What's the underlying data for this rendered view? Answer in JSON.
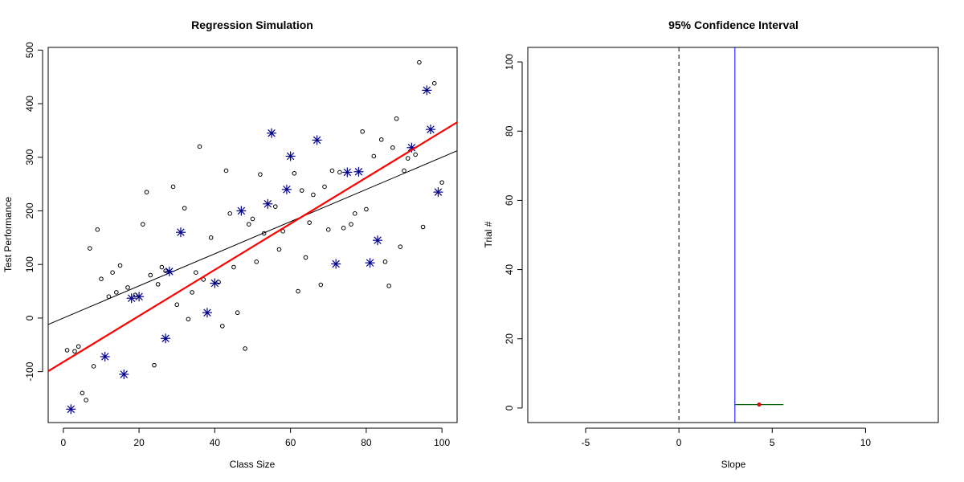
{
  "chart_data": [
    {
      "type": "scatter",
      "title": "Regression Simulation",
      "xlabel": "Class Size",
      "ylabel": "Test Performance",
      "xlim": [
        -4,
        104
      ],
      "ylim": [
        -195,
        505
      ],
      "xticks": [
        0,
        20,
        40,
        60,
        80,
        100
      ],
      "yticks": [
        -100,
        0,
        100,
        200,
        300,
        400,
        500
      ],
      "grid": false,
      "population_points": [
        [
          1,
          -60
        ],
        [
          3,
          -62
        ],
        [
          4,
          -53
        ],
        [
          5,
          -140
        ],
        [
          6,
          -153
        ],
        [
          7,
          130
        ],
        [
          8,
          -90
        ],
        [
          9,
          165
        ],
        [
          10,
          73
        ],
        [
          12,
          40
        ],
        [
          13,
          85
        ],
        [
          14,
          48
        ],
        [
          15,
          98
        ],
        [
          17,
          57
        ],
        [
          19,
          43
        ],
        [
          21,
          175
        ],
        [
          22,
          235
        ],
        [
          23,
          80
        ],
        [
          24,
          -88
        ],
        [
          25,
          63
        ],
        [
          26,
          95
        ],
        [
          27,
          88
        ],
        [
          29,
          245
        ],
        [
          30,
          25
        ],
        [
          32,
          205
        ],
        [
          33,
          -2
        ],
        [
          34,
          48
        ],
        [
          35,
          85
        ],
        [
          36,
          320
        ],
        [
          37,
          72
        ],
        [
          39,
          150
        ],
        [
          41,
          67
        ],
        [
          42,
          -15
        ],
        [
          43,
          275
        ],
        [
          44,
          195
        ],
        [
          45,
          95
        ],
        [
          46,
          10
        ],
        [
          48,
          -57
        ],
        [
          49,
          175
        ],
        [
          50,
          185
        ],
        [
          51,
          105
        ],
        [
          52,
          268
        ],
        [
          53,
          158
        ],
        [
          56,
          208
        ],
        [
          57,
          128
        ],
        [
          58,
          162
        ],
        [
          61,
          270
        ],
        [
          62,
          50
        ],
        [
          63,
          238
        ],
        [
          64,
          113
        ],
        [
          65,
          178
        ],
        [
          66,
          230
        ],
        [
          68,
          62
        ],
        [
          69,
          245
        ],
        [
          70,
          165
        ],
        [
          71,
          275
        ],
        [
          73,
          272
        ],
        [
          74,
          168
        ],
        [
          76,
          175
        ],
        [
          77,
          195
        ],
        [
          79,
          348
        ],
        [
          80,
          203
        ],
        [
          82,
          302
        ],
        [
          84,
          333
        ],
        [
          85,
          105
        ],
        [
          86,
          60
        ],
        [
          87,
          318
        ],
        [
          88,
          372
        ],
        [
          89,
          133
        ],
        [
          90,
          275
        ],
        [
          91,
          298
        ],
        [
          93,
          305
        ],
        [
          94,
          477
        ],
        [
          95,
          170
        ],
        [
          98,
          438
        ],
        [
          100,
          253
        ]
      ],
      "sample_points": [
        [
          2,
          -170
        ],
        [
          11,
          -72
        ],
        [
          16,
          -105
        ],
        [
          18,
          37
        ],
        [
          20,
          40
        ],
        [
          27,
          -38
        ],
        [
          28,
          87
        ],
        [
          31,
          160
        ],
        [
          38,
          10
        ],
        [
          40,
          65
        ],
        [
          47,
          200
        ],
        [
          54,
          213
        ],
        [
          55,
          345
        ],
        [
          59,
          240
        ],
        [
          60,
          302
        ],
        [
          67,
          332
        ],
        [
          72,
          101
        ],
        [
          75,
          272
        ],
        [
          78,
          273
        ],
        [
          81,
          103
        ],
        [
          83,
          145
        ],
        [
          92,
          318
        ],
        [
          96,
          425
        ],
        [
          97,
          352
        ],
        [
          99,
          235
        ]
      ],
      "population_line": {
        "intercept": 0,
        "slope": 3
      },
      "sample_line": {
        "intercept": -82,
        "slope": 4.3
      },
      "colors": {
        "sample": "#00008B",
        "sample_line": "#ff0000",
        "population_line": "#000000",
        "points": "#000000"
      }
    },
    {
      "type": "line",
      "title": "95% Confidence Interval",
      "xlabel": "Slope",
      "ylabel": "Trial #",
      "xlim": [
        -8.1,
        13.9
      ],
      "ylim": [
        -4.2,
        104.2
      ],
      "xticks": [
        -5,
        0,
        5,
        10
      ],
      "yticks": [
        0,
        20,
        40,
        60,
        80,
        100
      ],
      "grid": false,
      "reference_lines": [
        {
          "x": 0,
          "style": "dashed",
          "color": "#000000"
        },
        {
          "x": 3,
          "style": "solid",
          "color": "#0000ff"
        }
      ],
      "intervals": [
        {
          "trial": 1,
          "lower": 3.0,
          "estimate": 4.3,
          "upper": 5.6
        }
      ],
      "colors": {
        "interval": "#006400",
        "estimate": "#ff0000"
      }
    }
  ]
}
